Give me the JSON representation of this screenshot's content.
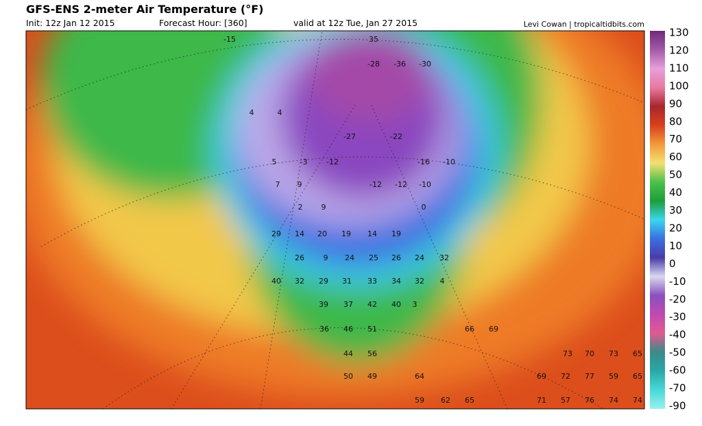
{
  "header": {
    "title": "GFS-ENS 2-meter Air Temperature (°F)",
    "init": "Init: 12z Jan 12 2015",
    "forecast_hour": "Forecast Hour: [360]",
    "valid": "valid at 12z Tue, Jan 27 2015",
    "credit": "Levi Cowan | tropicaltidbits.com"
  },
  "colorbar": {
    "ticks": [
      130,
      120,
      110,
      100,
      90,
      80,
      70,
      60,
      50,
      40,
      30,
      20,
      10,
      0,
      -10,
      -20,
      -30,
      -40,
      -50,
      -60,
      -70,
      -90
    ],
    "colors": [
      "#6d2a78",
      "#a45aa8",
      "#e6a0dc",
      "#e87aa0",
      "#a8262c",
      "#d8401c",
      "#f29a3a",
      "#f5e070",
      "#4cc04c",
      "#1e9e3a",
      "#3ad6ee",
      "#3a70e0",
      "#4a3aa8",
      "#d8d8f0",
      "#8a50c0",
      "#c04ab0",
      "#e05a90",
      "#3a8a8a",
      "#2aa8a8",
      "#48d8d8",
      "#9af0f0"
    ]
  },
  "map": {
    "labels": [
      -15,
      35,
      -28,
      -36,
      -30,
      4,
      4,
      -27,
      -22,
      5,
      -3,
      -12,
      -16,
      -10,
      7,
      9,
      -12,
      -12,
      -10,
      2,
      9,
      0,
      29,
      14,
      20,
      19,
      14,
      19,
      26,
      9,
      24,
      25,
      26,
      24,
      32,
      40,
      32,
      29,
      31,
      33,
      34,
      32,
      4,
      39,
      37,
      42,
      40,
      3,
      36,
      46,
      51,
      66,
      69,
      44,
      56,
      73,
      70,
      73,
      65,
      50,
      49,
      64,
      69,
      72,
      77,
      59,
      65,
      59,
      62,
      65,
      71,
      57,
      76,
      74,
      74
    ]
  }
}
